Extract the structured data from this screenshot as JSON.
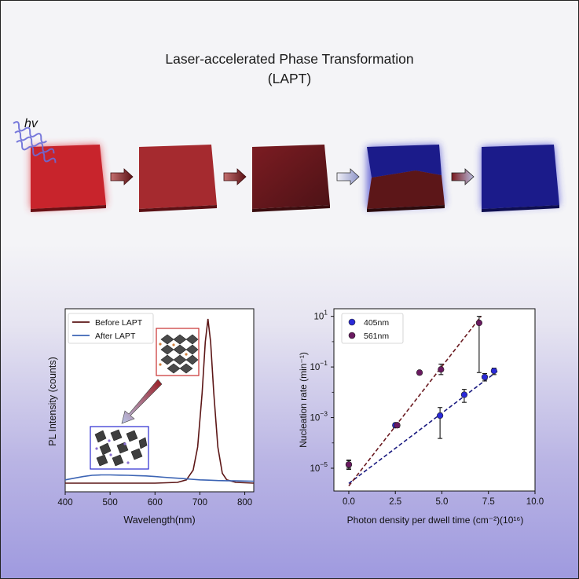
{
  "title": {
    "line1": "Laser-accelerated Phase Transformation",
    "line2": "(LAPT)"
  },
  "diagram": {
    "photon_label": "hv"
  },
  "colors": {
    "red_phase": "#c8242c",
    "dark_red": "#5a1418",
    "blue_phase": "#1b1b8a",
    "background_purple": "#9f9adf"
  },
  "chart_data": [
    {
      "type": "line",
      "xlabel": "Wavelength(nm)",
      "ylabel": "PL Intensity (counts)",
      "xlim": [
        400,
        820
      ],
      "xticks": [
        "400",
        "500",
        "600",
        "700",
        "800"
      ],
      "series": [
        {
          "name": "Before LAPT",
          "color": "#5c1616",
          "x": [
            400,
            600,
            650,
            670,
            685,
            695,
            705,
            712,
            718,
            724,
            731,
            740,
            750,
            760,
            780,
            820
          ],
          "y": [
            0.0,
            0.0,
            0.005,
            0.02,
            0.08,
            0.22,
            0.55,
            0.86,
            1.0,
            0.86,
            0.55,
            0.22,
            0.06,
            0.02,
            0.005,
            0.0
          ]
        },
        {
          "name": "After LAPT",
          "color": "#3c64b4",
          "x": [
            400,
            420,
            440,
            460,
            480,
            500,
            520,
            540,
            560,
            580,
            600,
            620,
            640,
            660,
            680,
            700,
            720,
            740,
            760,
            780,
            800,
            820
          ],
          "y": [
            0.02,
            0.03,
            0.04,
            0.048,
            0.05,
            0.05,
            0.049,
            0.048,
            0.046,
            0.044,
            0.04,
            0.036,
            0.032,
            0.028,
            0.024,
            0.02,
            0.018,
            0.016,
            0.015,
            0.014,
            0.013,
            0.012
          ]
        }
      ],
      "legend": "top-left",
      "annotations": {
        "insets": [
          "red-bordered crystal structure inset",
          "blue-bordered crystal structure inset"
        ]
      }
    },
    {
      "type": "scatter",
      "xlabel": "Photon density per dwell time (cm⁻²)(10¹⁶)",
      "ylabel": "Nucleation rate (min⁻¹)",
      "xlim": [
        -0.8,
        10
      ],
      "ylim_log10": [
        -5.9,
        1.3
      ],
      "yscale": "log",
      "xticks": [
        "0.0",
        "2.5",
        "5.0",
        "7.5",
        "10.0"
      ],
      "yticks": [
        {
          "base": "10",
          "exp": "1",
          "log": 1
        },
        {
          "base": "10",
          "exp": "−1",
          "log": -1
        },
        {
          "base": "10",
          "exp": "−3",
          "log": -3
        },
        {
          "base": "10",
          "exp": "−5",
          "log": -5
        }
      ],
      "legend": "top-left",
      "series": [
        {
          "name": "405nm",
          "color": "#2a2ad8",
          "points": [
            {
              "x": 0.0,
              "y": 1.4e-05,
              "err_lo": 9e-06,
              "err_hi": 2.1e-05
            },
            {
              "x": 2.5,
              "y": 0.0005,
              "err_lo": 0.0004,
              "err_hi": 0.0006
            },
            {
              "x": 4.9,
              "y": 0.0012,
              "err_lo": 0.00015,
              "err_hi": 0.0025
            },
            {
              "x": 6.2,
              "y": 0.008,
              "err_lo": 0.004,
              "err_hi": 0.013
            },
            {
              "x": 7.3,
              "y": 0.04,
              "err_lo": 0.028,
              "err_hi": 0.055
            },
            {
              "x": 7.8,
              "y": 0.07,
              "err_lo": 0.05,
              "err_hi": 0.09
            }
          ],
          "fit": {
            "x": [
              0.0,
              8.0
            ],
            "y": [
              2.5e-06,
              0.07
            ]
          }
        },
        {
          "name": "561nm",
          "color": "#6a1a60",
          "points": [
            {
              "x": 0.0,
              "y": 1.4e-05,
              "err_lo": 1e-05,
              "err_hi": 2e-05
            },
            {
              "x": 2.6,
              "y": 0.0005,
              "err_lo": 0.0004,
              "err_hi": 0.0006
            },
            {
              "x": 3.8,
              "y": 0.06,
              "err_lo": 0.05,
              "err_hi": 0.07
            },
            {
              "x": 4.95,
              "y": 0.08,
              "err_lo": 0.05,
              "err_hi": 0.13
            },
            {
              "x": 7.0,
              "y": 5.5,
              "err_lo": 0.06,
              "err_hi": 10.0
            }
          ],
          "fit": {
            "x": [
              0.0,
              7.1
            ],
            "y": [
              2e-06,
              10.0
            ]
          }
        }
      ]
    }
  ]
}
